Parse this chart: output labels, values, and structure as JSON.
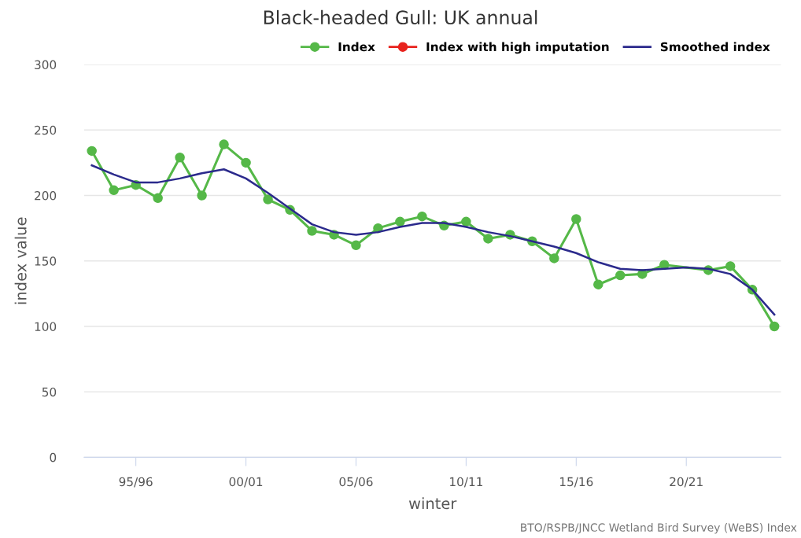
{
  "chart_data": {
    "type": "line",
    "title": "Black-headed Gull: UK annual",
    "xlabel": "winter",
    "ylabel": "index value",
    "categories": [
      null,
      null,
      "95/96",
      null,
      null,
      null,
      null,
      "00/01",
      null,
      null,
      null,
      null,
      "05/06",
      null,
      null,
      null,
      null,
      "10/11",
      null,
      null,
      null,
      null,
      "15/16",
      null,
      null,
      null,
      null,
      "20/21",
      null,
      null,
      null,
      null
    ],
    "series": [
      {
        "name": "Index",
        "color": "#55b848",
        "marker": "circle",
        "values": [
          234,
          204,
          208,
          198,
          229,
          200,
          239,
          225,
          197,
          189,
          173,
          170,
          162,
          175,
          180,
          184,
          177,
          180,
          167,
          170,
          165,
          152,
          182,
          132,
          139,
          140,
          147,
          null,
          143,
          146,
          128,
          100
        ]
      },
      {
        "name": "Index with high imputation",
        "color": "#e8231e",
        "marker": "circle",
        "values": [
          null,
          null,
          null,
          null,
          null,
          null,
          null,
          null,
          null,
          null,
          null,
          null,
          null,
          null,
          null,
          null,
          null,
          null,
          null,
          null,
          null,
          null,
          null,
          null,
          null,
          null,
          null,
          null,
          null,
          null,
          null,
          null
        ]
      },
      {
        "name": "Smoothed index",
        "color": "#2b2a8c",
        "marker": "none",
        "values": [
          223,
          216,
          210,
          210,
          213,
          217,
          220,
          213,
          202,
          190,
          178,
          172,
          170,
          172,
          176,
          179,
          179,
          176,
          172,
          169,
          165,
          161,
          156,
          149,
          144,
          143,
          144,
          145,
          144,
          140,
          128,
          109
        ]
      }
    ],
    "ylim": [
      0,
      300
    ],
    "yticks": [
      0,
      50,
      100,
      150,
      200,
      250,
      300
    ],
    "grid": "y",
    "legend": "top right",
    "annotations": [
      "BTO/RSPB/JNCC Wetland Bird Survey (WeBS) Index"
    ]
  }
}
